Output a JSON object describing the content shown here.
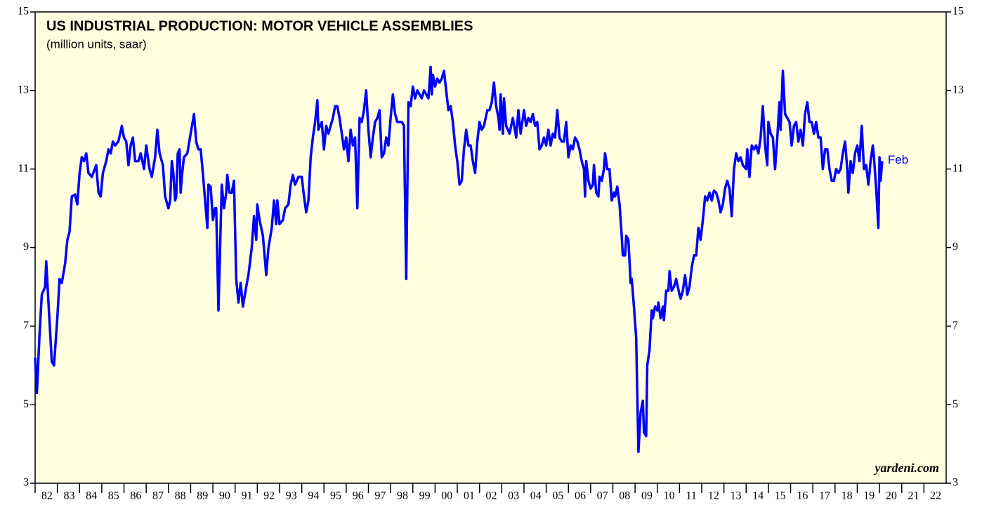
{
  "chart_data": {
    "type": "line",
    "title": "US INDUSTRIAL PRODUCTION: MOTOR VEHICLE ASSEMBLIES",
    "subtitle": "(million units, saar)",
    "annotations": [
      {
        "text": "Feb"
      },
      {
        "text": "yardeni.com"
      }
    ],
    "background": "#ffffe0",
    "xlim": [
      1982,
      2023
    ],
    "ylim": [
      3,
      15
    ],
    "yticks": [
      3,
      5,
      7,
      9,
      11,
      13,
      15
    ],
    "xticks": [
      {
        "value": 1982,
        "label": "82"
      },
      {
        "value": 1983,
        "label": "83"
      },
      {
        "value": 1984,
        "label": "84"
      },
      {
        "value": 1985,
        "label": "85"
      },
      {
        "value": 1986,
        "label": "86"
      },
      {
        "value": 1987,
        "label": "87"
      },
      {
        "value": 1988,
        "label": "88"
      },
      {
        "value": 1989,
        "label": "89"
      },
      {
        "value": 1990,
        "label": "90"
      },
      {
        "value": 1991,
        "label": "91"
      },
      {
        "value": 1992,
        "label": "92"
      },
      {
        "value": 1993,
        "label": "93"
      },
      {
        "value": 1994,
        "label": "94"
      },
      {
        "value": 1995,
        "label": "95"
      },
      {
        "value": 1996,
        "label": "96"
      },
      {
        "value": 1997,
        "label": "97"
      },
      {
        "value": 1998,
        "label": "98"
      },
      {
        "value": 1999,
        "label": "99"
      },
      {
        "value": 2000,
        "label": "00"
      },
      {
        "value": 2001,
        "label": "01"
      },
      {
        "value": 2002,
        "label": "02"
      },
      {
        "value": 2003,
        "label": "03"
      },
      {
        "value": 2004,
        "label": "04"
      },
      {
        "value": 2005,
        "label": "05"
      },
      {
        "value": 2006,
        "label": "06"
      },
      {
        "value": 2007,
        "label": "07"
      },
      {
        "value": 2008,
        "label": "08"
      },
      {
        "value": 2009,
        "label": "09"
      },
      {
        "value": 2010,
        "label": "10"
      },
      {
        "value": 2011,
        "label": "11"
      },
      {
        "value": 2012,
        "label": "12"
      },
      {
        "value": 2013,
        "label": "13"
      },
      {
        "value": 2014,
        "label": "14"
      },
      {
        "value": 2015,
        "label": "15"
      },
      {
        "value": 2016,
        "label": "16"
      },
      {
        "value": 2017,
        "label": "17"
      },
      {
        "value": 2018,
        "label": "18"
      },
      {
        "value": 2019,
        "label": "19"
      },
      {
        "value": 2020,
        "label": "20"
      },
      {
        "value": 2021,
        "label": "21"
      },
      {
        "value": 2022,
        "label": "22"
      }
    ],
    "x": [
      1982,
      1982.08,
      1982.2,
      1982.3,
      1982.45,
      1982.5,
      1982.6,
      1982.75,
      1982.85,
      1983,
      1983.1,
      1983.2,
      1983.35,
      1983.45,
      1983.55,
      1983.65,
      1983.8,
      1983.9,
      1984,
      1984.1,
      1984.2,
      1984.3,
      1984.4,
      1984.55,
      1984.75,
      1984.85,
      1984.95,
      1985.05,
      1985.2,
      1985.3,
      1985.4,
      1985.5,
      1985.6,
      1985.75,
      1985.9,
      1986,
      1986.1,
      1986.2,
      1986.3,
      1986.4,
      1986.5,
      1986.65,
      1986.75,
      1986.9,
      1987,
      1987.15,
      1987.25,
      1987.4,
      1987.5,
      1987.6,
      1987.75,
      1987.85,
      1987.95,
      1988,
      1988.08,
      1988.15,
      1988.22,
      1988.3,
      1988.35,
      1988.42,
      1988.5,
      1988.55,
      1988.6,
      1988.7,
      1988.85,
      1989,
      1989.15,
      1989.25,
      1989.35,
      1989.45,
      1989.55,
      1989.65,
      1989.75,
      1989.8,
      1989.9,
      1990,
      1990.1,
      1990.15,
      1990.25,
      1990.4,
      1990.5,
      1990.6,
      1990.65,
      1990.75,
      1990.85,
      1990.95,
      1991.05,
      1991.15,
      1991.25,
      1991.35,
      1991.5,
      1991.6,
      1991.75,
      1991.85,
      1991.95,
      1992,
      1992.1,
      1992.25,
      1992.4,
      1992.5,
      1992.65,
      1992.75,
      1992.85,
      1992.9,
      1993,
      1993.15,
      1993.25,
      1993.4,
      1993.5,
      1993.6,
      1993.7,
      1993.85,
      1994,
      1994.1,
      1994.2,
      1994.3,
      1994.4,
      1994.5,
      1994.6,
      1994.7,
      1994.75,
      1994.9,
      1995,
      1995.1,
      1995.2,
      1995.3,
      1995.4,
      1995.5,
      1995.6,
      1995.7,
      1995.8,
      1995.9,
      1996,
      1996.1,
      1996.2,
      1996.3,
      1996.4,
      1996.5,
      1996.6,
      1996.7,
      1996.8,
      1996.9,
      1997,
      1997.1,
      1997.2,
      1997.3,
      1997.4,
      1997.5,
      1997.6,
      1997.7,
      1997.8,
      1997.9,
      1998,
      1998.1,
      1998.2,
      1998.3,
      1998.4,
      1998.5,
      1998.6,
      1998.7,
      1998.8,
      1998.9,
      1999,
      1999.1,
      1999.2,
      1999.3,
      1999.4,
      1999.5,
      1999.6,
      1999.7,
      1999.8,
      1999.85,
      1999.9,
      2000,
      2000.1,
      2000.2,
      2000.3,
      2000.4,
      2000.5,
      2000.6,
      2000.7,
      2000.8,
      2000.9,
      2001,
      2001.1,
      2001.2,
      2001.3,
      2001.4,
      2001.5,
      2001.6,
      2001.7,
      2001.8,
      2001.9,
      2002,
      2002.1,
      2002.2,
      2002.35,
      2002.45,
      2002.55,
      2002.65,
      2002.75,
      2002.85,
      2002.9,
      2002.95,
      2003.05,
      2003.1,
      2003.2,
      2003.35,
      2003.5,
      2003.65,
      2003.75,
      2003.85,
      2004,
      2004.1,
      2004.2,
      2004.3,
      2004.4,
      2004.5,
      2004.6,
      2004.7,
      2004.8,
      2004.9,
      2005,
      2005.1,
      2005.2,
      2005.3,
      2005.4,
      2005.5,
      2005.6,
      2005.7,
      2005.8,
      2005.9,
      2006,
      2006.1,
      2006.2,
      2006.3,
      2006.4,
      2006.5,
      2006.6,
      2006.7,
      2006.75,
      2006.8,
      2006.9,
      2007,
      2007.1,
      2007.15,
      2007.25,
      2007.35,
      2007.4,
      2007.5,
      2007.6,
      2007.65,
      2007.75,
      2007.85,
      2007.95,
      2008.05,
      2008.1,
      2008.2,
      2008.3,
      2008.4,
      2008.45,
      2008.55,
      2008.6,
      2008.7,
      2008.8,
      2008.85,
      2008.95,
      2009.05,
      2009.15,
      2009.25,
      2009.35,
      2009.4,
      2009.5,
      2009.55,
      2009.65,
      2009.75,
      2009.8,
      2009.9,
      2010,
      2010.05,
      2010.15,
      2010.25,
      2010.3,
      2010.4,
      2010.5,
      2010.55,
      2010.65,
      2010.75,
      2010.85,
      2011,
      2011.05,
      2011.15,
      2011.25,
      2011.35,
      2011.45,
      2011.55,
      2011.65,
      2011.75,
      2011.85,
      2011.95,
      2012.05,
      2012.15,
      2012.25,
      2012.35,
      2012.45,
      2012.55,
      2012.65,
      2012.75,
      2012.85,
      2012.95,
      2013.05,
      2013.15,
      2013.25,
      2013.35,
      2013.45,
      2013.55,
      2013.65,
      2013.75,
      2013.85,
      2014,
      2014.05,
      2014.15,
      2014.25,
      2014.35,
      2014.45,
      2014.55,
      2014.65,
      2014.75,
      2014.85,
      2014.95,
      2015,
      2015.1,
      2015.2,
      2015.3,
      2015.4,
      2015.5,
      2015.55,
      2015.65,
      2015.75,
      2015.85,
      2015.95,
      2016.05,
      2016.15,
      2016.25,
      2016.35,
      2016.45,
      2016.55,
      2016.65,
      2016.75,
      2016.85,
      2016.95,
      2017.05,
      2017.15,
      2017.25,
      2017.35,
      2017.45,
      2017.55,
      2017.65,
      2017.75,
      2017.85,
      2017.95,
      2018.05,
      2018.15,
      2018.25,
      2018.35,
      2018.45,
      2018.55,
      2018.6,
      2018.7,
      2018.8,
      2018.9,
      2019,
      2019.1,
      2019.2,
      2019.3,
      2019.4,
      2019.5,
      2019.6,
      2019.7,
      2019.75,
      2019.85,
      2019.95,
      2020,
      2020.05,
      2020.12
    ],
    "series": [
      {
        "color": "#0000ff",
        "values": [
          6.2,
          5.3,
          6.8,
          7.8,
          8.0,
          8.65,
          7.6,
          6.1,
          6.0,
          7.2,
          8.2,
          8.1,
          8.6,
          9.2,
          9.4,
          10.3,
          10.35,
          10.1,
          10.9,
          11.3,
          11.2,
          11.4,
          10.9,
          10.8,
          11.1,
          10.4,
          10.3,
          10.9,
          11.2,
          11.5,
          11.4,
          11.7,
          11.6,
          11.7,
          12.1,
          11.8,
          11.7,
          11.1,
          11.6,
          11.8,
          11.2,
          11.2,
          11.4,
          11.0,
          11.6,
          11.0,
          10.8,
          11.3,
          12.0,
          11.4,
          11.1,
          10.3,
          10.1,
          10.0,
          10.2,
          11.2,
          10.9,
          10.2,
          10.3,
          11.4,
          11.5,
          10.4,
          10.8,
          11.3,
          11.4,
          11.9,
          12.4,
          11.7,
          11.5,
          11.5,
          10.9,
          10.2,
          9.5,
          10.6,
          10.55,
          9.7,
          10.0,
          10.0,
          7.4,
          10.6,
          10.0,
          10.4,
          10.85,
          10.4,
          10.4,
          10.7,
          8.2,
          7.6,
          8.1,
          7.5,
          8.0,
          8.3,
          9.0,
          9.8,
          9.2,
          10.1,
          9.7,
          9.3,
          8.3,
          9.0,
          9.5,
          10.2,
          9.6,
          10.2,
          9.6,
          9.7,
          10.0,
          10.1,
          10.6,
          10.85,
          10.6,
          10.8,
          10.8,
          10.3,
          9.9,
          10.2,
          11.3,
          11.8,
          12.2,
          12.75,
          12.0,
          12.2,
          11.5,
          12.1,
          11.9,
          12.1,
          12.3,
          12.6,
          12.6,
          12.3,
          11.9,
          11.5,
          11.8,
          11.2,
          12.0,
          11.6,
          11.8,
          10.0,
          12.3,
          12.2,
          12.5,
          13.0,
          12.0,
          11.3,
          11.8,
          12.2,
          12.3,
          12.5,
          11.3,
          11.4,
          11.8,
          11.6,
          12.3,
          12.9,
          12.4,
          12.2,
          12.2,
          12.2,
          12.1,
          8.2,
          12.7,
          12.6,
          13.1,
          12.8,
          13.0,
          12.9,
          12.8,
          13.0,
          12.9,
          12.8,
          13.6,
          12.9,
          13.4,
          13.1,
          13.3,
          13.2,
          13.3,
          13.5,
          13.0,
          12.5,
          12.6,
          12.2,
          11.6,
          11.2,
          10.6,
          10.7,
          11.5,
          12.0,
          11.6,
          11.6,
          11.2,
          10.9,
          11.7,
          12.2,
          12.0,
          12.1,
          12.5,
          12.5,
          12.7,
          13.2,
          12.6,
          12.3,
          12.0,
          12.9,
          11.9,
          12.8,
          12.1,
          11.9,
          12.3,
          11.8,
          12.5,
          11.9,
          12.5,
          12.1,
          12.3,
          12.2,
          12.4,
          12.1,
          12.2,
          11.5,
          11.6,
          11.8,
          11.6,
          12.0,
          11.6,
          11.9,
          11.8,
          12.5,
          11.8,
          11.7,
          11.7,
          12.2,
          11.3,
          11.6,
          11.5,
          11.8,
          11.7,
          11.5,
          11.2,
          11.0,
          10.3,
          11.2,
          10.7,
          10.5,
          10.6,
          11.1,
          10.4,
          10.3,
          10.8,
          10.7,
          11.0,
          11.4,
          11.0,
          11.0,
          10.2,
          10.4,
          10.3,
          10.55,
          10.1,
          9.3,
          8.8,
          8.8,
          9.3,
          9.2,
          8.1,
          8.2,
          7.5,
          6.7,
          3.8,
          4.8,
          5.1,
          4.3,
          4.2,
          6.0,
          6.4,
          7.4,
          7.2,
          7.5,
          7.4,
          7.6,
          7.2,
          7.5,
          7.15,
          7.9,
          7.9,
          8.4,
          7.9,
          8.0,
          8.2,
          7.8,
          7.7,
          7.9,
          8.3,
          7.8,
          8.0,
          8.5,
          8.8,
          8.8,
          9.5,
          9.2,
          9.7,
          10.3,
          10.2,
          10.4,
          10.2,
          10.45,
          10.4,
          10.2,
          9.9,
          10.1,
          10.5,
          10.7,
          10.5,
          9.8,
          11.0,
          11.4,
          11.2,
          11.3,
          11.1,
          11.0,
          11.5,
          10.8,
          11.6,
          11.5,
          11.6,
          11.4,
          11.8,
          12.6,
          11.6,
          11.1,
          12.2,
          11.9,
          11.8,
          11.0,
          11.8,
          12.7,
          12.0,
          13.5,
          12.4,
          12.3,
          12.2,
          11.6,
          12.1,
          12.2,
          11.7,
          12.0,
          11.6,
          12.4,
          12.7,
          12.2,
          12.2,
          11.9,
          12.2,
          11.8,
          11.8,
          11.0,
          11.5,
          11.5,
          11.0,
          10.7,
          10.7,
          11.0,
          10.9,
          11.0,
          11.4,
          11.7,
          11.0,
          10.4,
          11.2,
          10.9,
          11.4,
          11.6,
          11.2,
          12.1,
          11.0,
          11.1,
          10.6,
          11.2,
          11.6,
          11.3,
          10.5,
          9.5,
          11.3,
          10.7,
          11.2
        ]
      }
    ]
  }
}
